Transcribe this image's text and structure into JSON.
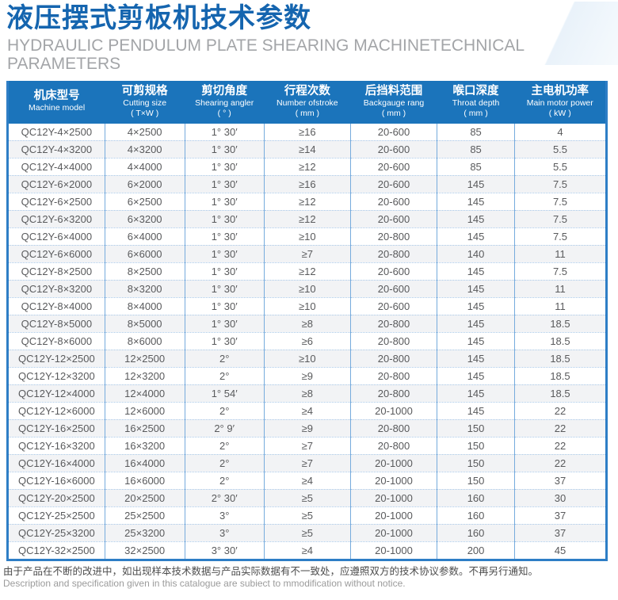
{
  "page": {
    "title_zh": "液压摆式剪板机技术参数",
    "subtitle_en": "HYDRAULIC PENDULUM PLATE SHEARING MACHINETECHNICAL PARAMETERS"
  },
  "table": {
    "columns": [
      {
        "zh": "机床型号",
        "en": "Machine model",
        "unit": ""
      },
      {
        "zh": "可剪规格",
        "en": "Cutting size",
        "unit": "( T×W )"
      },
      {
        "zh": "剪切角度",
        "en": "Shearing angler",
        "unit": "( ° )"
      },
      {
        "zh": "行程次数",
        "en": "Number ofstroke",
        "unit": "( mm )"
      },
      {
        "zh": "后挡料范围",
        "en": "Backgauge rang",
        "unit": "( mm )"
      },
      {
        "zh": "喉口深度",
        "en": "Throat depth",
        "unit": "( mm )"
      },
      {
        "zh": "主电机功率",
        "en": "Main motor power",
        "unit": "( kW )"
      }
    ],
    "rows": [
      [
        "QC12Y-4×2500",
        "4×2500",
        "1° 30′",
        "≥16",
        "20-600",
        "85",
        "4"
      ],
      [
        "QC12Y-4×3200",
        "4×3200",
        "1° 30′",
        "≥14",
        "20-600",
        "85",
        "5.5"
      ],
      [
        "QC12Y-4×4000",
        "4×4000",
        "1° 30′",
        "≥12",
        "20-600",
        "85",
        "5.5"
      ],
      [
        "QC12Y-6×2000",
        "6×2000",
        "1° 30′",
        "≥16",
        "20-600",
        "145",
        "7.5"
      ],
      [
        "QC12Y-6×2500",
        "6×2500",
        "1° 30′",
        "≥12",
        "20-600",
        "145",
        "7.5"
      ],
      [
        "QC12Y-6×3200",
        "6×3200",
        "1° 30′",
        "≥12",
        "20-600",
        "145",
        "7.5"
      ],
      [
        "QC12Y-6×4000",
        "6×4000",
        "1° 30′",
        "≥10",
        "20-800",
        "145",
        "7.5"
      ],
      [
        "QC12Y-6×6000",
        "6×6000",
        "1° 30′",
        "≥7",
        "20-800",
        "140",
        "11"
      ],
      [
        "QC12Y-8×2500",
        "8×2500",
        "1° 30′",
        "≥12",
        "20-600",
        "145",
        "7.5"
      ],
      [
        "QC12Y-8×3200",
        "8×3200",
        "1° 30′",
        "≥10",
        "20-600",
        "145",
        "11"
      ],
      [
        "QC12Y-8×4000",
        "8×4000",
        "1° 30′",
        "≥10",
        "20-600",
        "145",
        "11"
      ],
      [
        "QC12Y-8×5000",
        "8×5000",
        "1° 30′",
        "≥8",
        "20-800",
        "145",
        "18.5"
      ],
      [
        "QC12Y-8×6000",
        "8×6000",
        "1° 30′",
        "≥6",
        "20-800",
        "145",
        "18.5"
      ],
      [
        "QC12Y-12×2500",
        "12×2500",
        "2°",
        "≥10",
        "20-800",
        "145",
        "18.5"
      ],
      [
        "QC12Y-12×3200",
        "12×3200",
        "2°",
        "≥9",
        "20-800",
        "145",
        "18.5"
      ],
      [
        "QC12Y-12×4000",
        "12×4000",
        "1° 54′",
        "≥8",
        "20-800",
        "145",
        "18.5"
      ],
      [
        "QC12Y-12×6000",
        "12×6000",
        "2°",
        "≥4",
        "20-1000",
        "145",
        "22"
      ],
      [
        "QC12Y-16×2500",
        "16×2500",
        "2° 9′",
        "≥9",
        "20-800",
        "150",
        "22"
      ],
      [
        "QC12Y-16×3200",
        "16×3200",
        "2°",
        "≥7",
        "20-800",
        "150",
        "22"
      ],
      [
        "QC12Y-16×4000",
        "16×4000",
        "2°",
        "≥7",
        "20-1000",
        "150",
        "22"
      ],
      [
        "QC12Y-16×6000",
        "16×6000",
        "2°",
        "≥4",
        "20-1000",
        "150",
        "37"
      ],
      [
        "QC12Y-20×2500",
        "20×2500",
        "2° 30′",
        "≥5",
        "20-1000",
        "160",
        "30"
      ],
      [
        "QC12Y-25×2500",
        "25×2500",
        "3°",
        "≥5",
        "20-1000",
        "160",
        "37"
      ],
      [
        "QC12Y-25×3200",
        "25×3200",
        "3°",
        "≥5",
        "20-1000",
        "160",
        "37"
      ],
      [
        "QC12Y-32×2500",
        "32×2500",
        "3° 30′",
        "≥4",
        "20-1000",
        "200",
        "45"
      ]
    ]
  },
  "footer": {
    "note_zh": "由于产品在不断的改进中，如出现样本技术数据与产品实际数据有不一致处，应遵照双方的技术协议参数。不再另行通知。",
    "note_en": "Description and specification given in this catalogue are subiect to mmodification without notice."
  },
  "colors": {
    "title_blue": "#1565af",
    "header_bg": "#1b74bb",
    "outer_border": "#2e7ec6",
    "grid_blue": "#76abdd",
    "dotted_blue": "#a9c9e9",
    "row_alt_bg": "#f2f3f5",
    "cell_text": "#595a5c",
    "subtitle_gray": "#a3a5a8"
  }
}
